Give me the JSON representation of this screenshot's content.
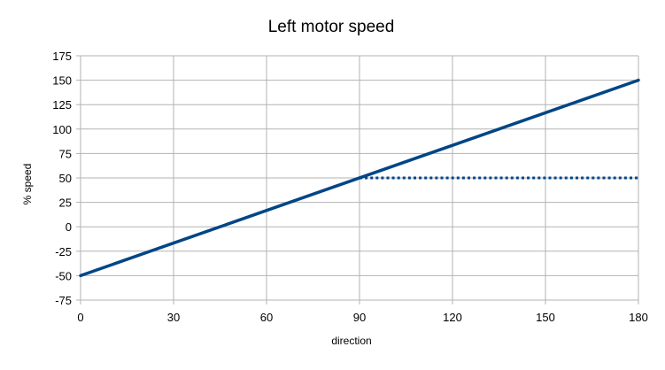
{
  "chart_data": {
    "type": "line",
    "title": "Left motor speed",
    "xlabel": "direction",
    "ylabel": "% speed",
    "xlim": [
      0,
      180
    ],
    "ylim": [
      -75,
      175
    ],
    "xticks": [
      "0",
      "30",
      "60",
      "90",
      "120",
      "150",
      "180"
    ],
    "yticks": [
      "-75",
      "-50",
      "-25",
      "0",
      "25",
      "50",
      "75",
      "100",
      "125",
      "150",
      "175"
    ],
    "grid": true,
    "legend": "none",
    "series": [
      {
        "style": "solid",
        "color": "#004586",
        "x": [
          0,
          180
        ],
        "y": [
          -50,
          150
        ]
      },
      {
        "style": "dotted",
        "color": "#004586",
        "x": [
          90,
          180
        ],
        "y": [
          50,
          50
        ]
      }
    ]
  }
}
